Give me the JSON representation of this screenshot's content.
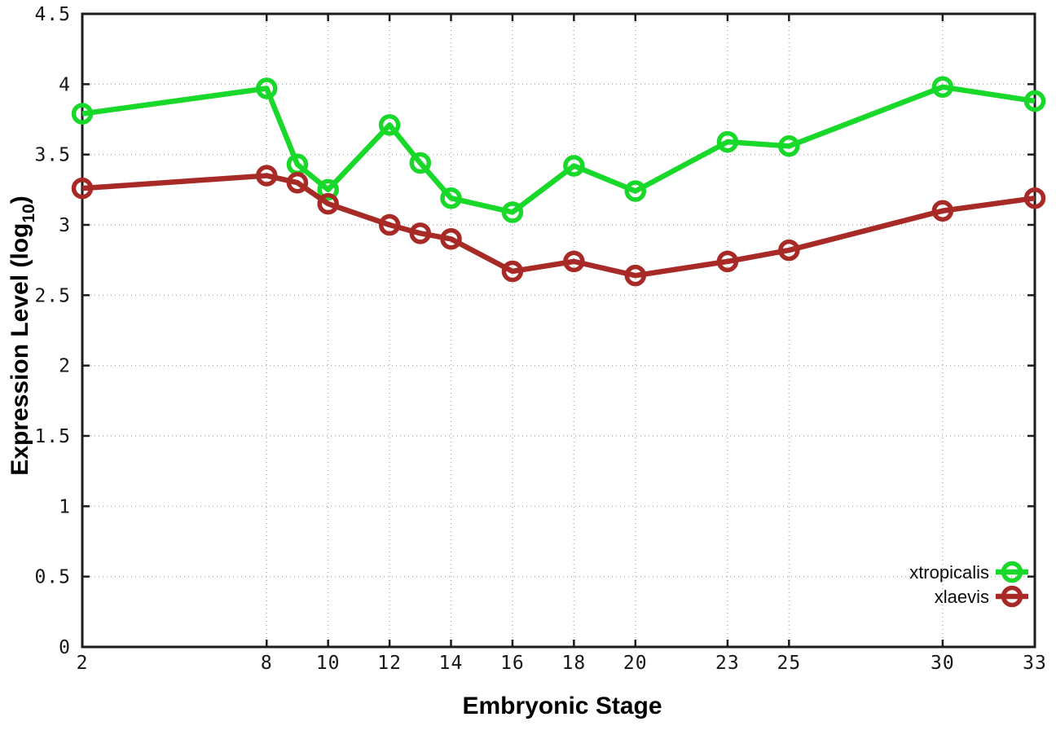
{
  "figure": {
    "background": "#ffffff",
    "border_color": "#1c1c1c",
    "grid_color": "#b4b4b4",
    "tick_color": "#1c1c1c"
  },
  "chart_data": {
    "type": "line",
    "title": "",
    "xlabel": "Embryonic Stage",
    "ylabel": "Expression Level (log10)",
    "ylabel_parts": {
      "prefix": "Expression Level (log",
      "sub": "10",
      "suffix": ")"
    },
    "xlim": [
      2,
      33
    ],
    "ylim": [
      0,
      4.5
    ],
    "x_ticks": [
      2,
      8,
      10,
      12,
      14,
      16,
      18,
      20,
      23,
      25,
      30,
      33
    ],
    "y_ticks": [
      0,
      0.5,
      1,
      1.5,
      2,
      2.5,
      3,
      3.5,
      4,
      4.5
    ],
    "grid": true,
    "legend_position": "bottom-right",
    "x": [
      2,
      8,
      9,
      10,
      12,
      13,
      14,
      16,
      18,
      20,
      23,
      25,
      30,
      33
    ],
    "series": [
      {
        "name": "xtropicalis",
        "color": "#18d82a",
        "values": [
          3.79,
          3.97,
          3.43,
          3.25,
          3.71,
          3.44,
          3.19,
          3.09,
          3.42,
          3.24,
          3.59,
          3.56,
          3.98,
          3.88
        ]
      },
      {
        "name": "xlaevis",
        "color": "#a82a26",
        "values": [
          3.26,
          3.35,
          3.3,
          3.15,
          3.0,
          2.94,
          2.9,
          2.67,
          2.74,
          2.64,
          2.74,
          2.82,
          3.1,
          3.19
        ]
      }
    ]
  }
}
